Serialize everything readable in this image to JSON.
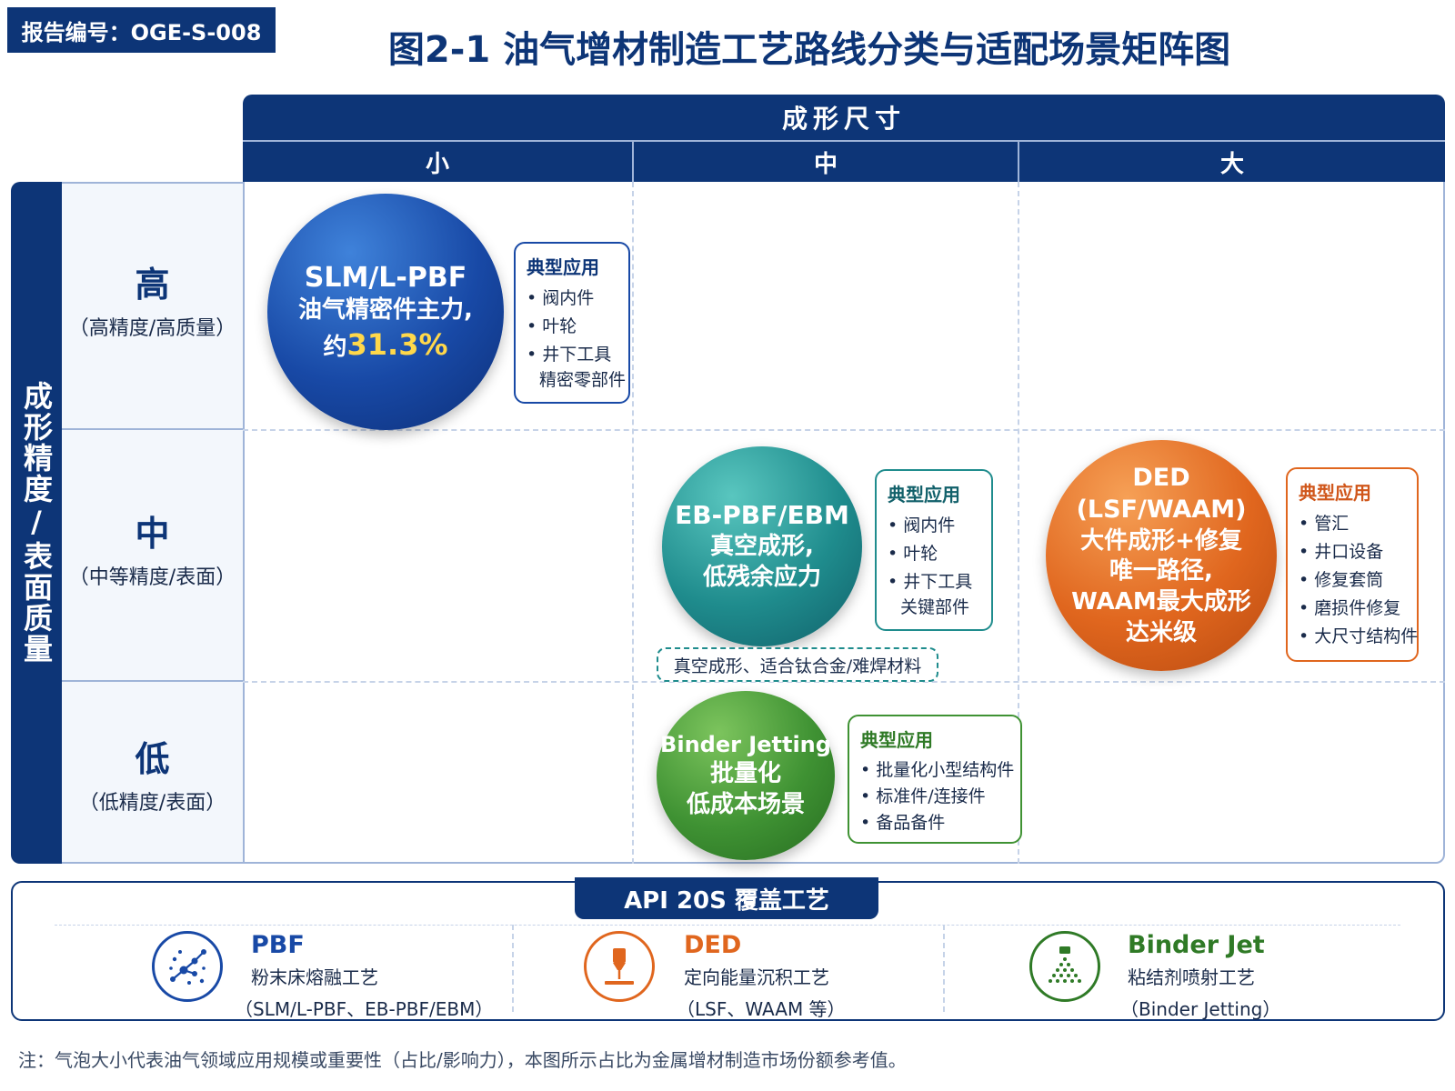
{
  "report_tag": "报告编号：OGE-S-008",
  "title": "图2-1  油气增材制造工艺路线分类与适配场景矩阵图",
  "col_axis": {
    "label": "成形尺寸",
    "columns": [
      "小",
      "中",
      "大"
    ]
  },
  "row_axis": {
    "label": "成形精度/表面质量",
    "rows": [
      {
        "level": "高",
        "desc": "（高精度/高质量）"
      },
      {
        "level": "中",
        "desc": "（中等精度/表面）"
      },
      {
        "level": "低",
        "desc": "（低精度/表面）"
      }
    ]
  },
  "bubbles": {
    "slm": {
      "title": "SLM/L-PBF",
      "line2": "油气精密件主力,",
      "line3_prefix": "约",
      "line3_value": "31.3%",
      "color": "#1849a6"
    },
    "ebm": {
      "title": "EB-PBF/EBM",
      "line2": "真空成形,",
      "line3": "低残余应力",
      "color": "#1f8c8d"
    },
    "ded": {
      "title": "DED (LSF/WAAM)",
      "line2": "大件成形+修复",
      "line3": "唯一路径,",
      "line4": "WAAM最大成形",
      "line5": "达米级",
      "color": "#e0661e"
    },
    "binder": {
      "title": "Binder Jetting",
      "line2": "批量化",
      "line3": "低成本场景",
      "color": "#3f9233"
    }
  },
  "app_boxes": {
    "slm": {
      "title": "典型应用",
      "items": [
        "阀内件",
        "叶轮",
        "井下工具"
      ],
      "continuation": "精密零部件"
    },
    "ebm": {
      "title": "典型应用",
      "items": [
        "阀内件",
        "叶轮",
        "井下工具"
      ],
      "continuation": "关键部件"
    },
    "ded": {
      "title": "典型应用",
      "items": [
        "管汇",
        "井口设备",
        "修复套筒",
        "磨损件修复",
        "大尺寸结构件"
      ]
    },
    "binder": {
      "title": "典型应用",
      "items": [
        "批量化小型结构件",
        "标准件/连接件",
        "备品备件"
      ]
    }
  },
  "ebm_note": "真空成形、适合钛合金/难焊材料",
  "api_panel": {
    "title": "API 20S 覆盖工艺",
    "items": [
      {
        "name": "PBF",
        "desc": "粉末床熔融工艺",
        "paren": "（SLM/L-PBF、EB-PBF/EBM）",
        "icon": "powder-bed-icon",
        "color": "#1849a6"
      },
      {
        "name": "DED",
        "desc": "定向能量沉积工艺",
        "paren": "（LSF、WAAM 等）",
        "icon": "energy-nozzle-icon",
        "color": "#e0661e"
      },
      {
        "name": "Binder Jet",
        "desc": "粘结剂喷射工艺",
        "paren": "（Binder Jetting）",
        "icon": "binder-spray-icon",
        "color": "#2f7a26"
      }
    ]
  },
  "footnote": "注：气泡大小代表油气领域应用规模或重要性（占比/影响力），本图所示占比为金属增材制造市场份额参考值。"
}
